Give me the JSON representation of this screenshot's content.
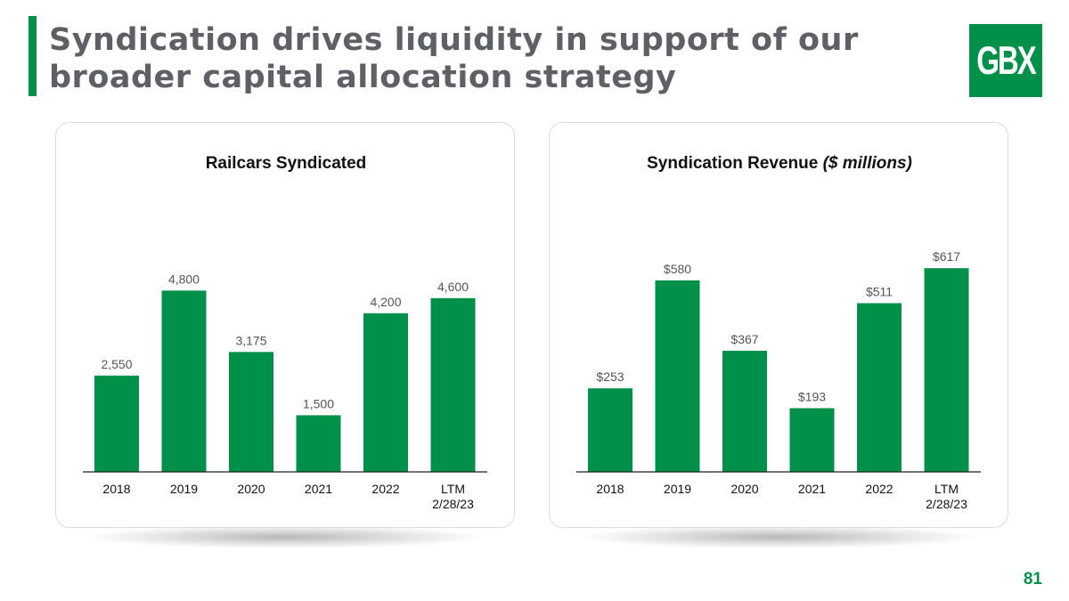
{
  "slide": {
    "title_line1": "Syndication drives liquidity in support of our",
    "title_line2": "broader capital allocation strategy",
    "logo_text": "GBX",
    "page_number": "81",
    "accent_color": "#00904a"
  },
  "chart_data": [
    {
      "type": "bar",
      "title": "Railcars Syndicated",
      "title_suffix": "",
      "categories": [
        "2018",
        "2019",
        "2020",
        "2021",
        "2022",
        "LTM|2/28/23"
      ],
      "values": [
        2550,
        4800,
        3175,
        1500,
        4200,
        4600
      ],
      "labels": [
        "2,550",
        "4,800",
        "3,175",
        "1,500",
        "4,200",
        "4,600"
      ],
      "ylim": [
        0,
        6600
      ],
      "grid": false,
      "bar_color": "#00904a"
    },
    {
      "type": "bar",
      "title": "Syndication Revenue",
      "title_suffix": "($ millions)",
      "categories": [
        "2018",
        "2019",
        "2020",
        "2021",
        "2022",
        "LTM|2/28/23"
      ],
      "values": [
        253,
        580,
        367,
        193,
        511,
        617
      ],
      "labels": [
        "$253",
        "$580",
        "$367",
        "$193",
        "$511",
        "$617"
      ],
      "ylim": [
        0,
        755
      ],
      "grid": false,
      "bar_color": "#00904a"
    }
  ]
}
